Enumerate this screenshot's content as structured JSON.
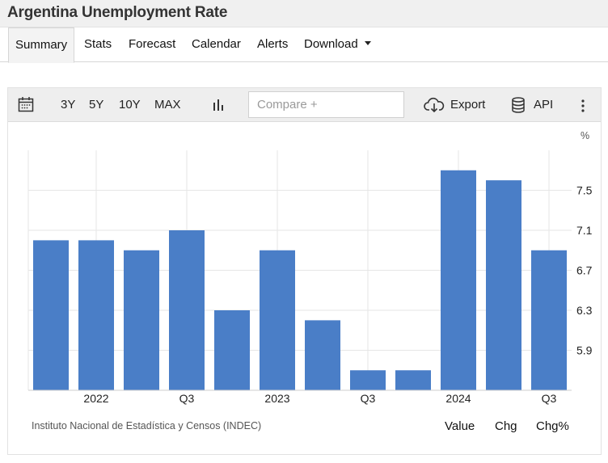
{
  "header": {
    "title": "Argentina Unemployment Rate"
  },
  "tabs": [
    {
      "label": "Summary",
      "active": true
    },
    {
      "label": "Stats"
    },
    {
      "label": "Forecast"
    },
    {
      "label": "Calendar"
    },
    {
      "label": "Alerts"
    },
    {
      "label": "Download"
    }
  ],
  "toolbar": {
    "icons": [
      "calendar-icon",
      "bar-chart-icon",
      "cloud-download-icon",
      "database-icon",
      "more-vertical-icon"
    ],
    "ranges": [
      "3Y",
      "5Y",
      "10Y",
      "MAX"
    ],
    "compare_placeholder": "Compare +",
    "export_label": "Export",
    "api_label": "API"
  },
  "chart_data": {
    "type": "bar",
    "unit": "%",
    "color": "#4a7ec7",
    "values": [
      7.0,
      7.0,
      6.9,
      7.1,
      6.3,
      6.9,
      6.2,
      5.7,
      5.7,
      7.7,
      7.6,
      6.9
    ],
    "x_tick_labels": [
      {
        "index": 1,
        "label": "2022"
      },
      {
        "index": 3,
        "label": "Q3"
      },
      {
        "index": 5,
        "label": "2023"
      },
      {
        "index": 7,
        "label": "Q3"
      },
      {
        "index": 9,
        "label": "2024"
      },
      {
        "index": 11,
        "label": "Q3"
      }
    ],
    "y_ticks": [
      5.9,
      6.3,
      6.7,
      7.1,
      7.5
    ],
    "y_tick_labels": [
      "5.9",
      "6.3",
      "6.7",
      "7.1",
      "7.5"
    ],
    "ylim": [
      5.5,
      7.9
    ],
    "grid": true,
    "y_axis_side": "right"
  },
  "footer": {
    "source": "Instituto Nacional de Estadística y Censos (INDEC)",
    "links": [
      "Value",
      "Chg",
      "Chg%"
    ]
  }
}
